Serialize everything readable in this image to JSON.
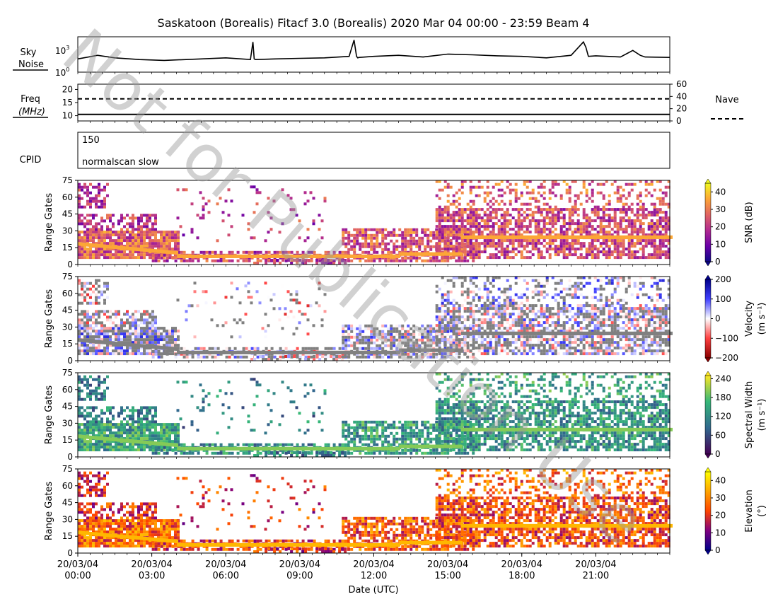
{
  "title": "Saskatoon (Borealis) Fitacf 3.0 (Borealis) 2020 Mar 04 00:00 - 23:59  Beam 4",
  "watermark": "Not for Publication Use",
  "colors": {
    "snr": [
      "#0d0887",
      "#6a00a8",
      "#b12a90",
      "#e16462",
      "#fca636",
      "#f0f921"
    ],
    "velocity": [
      "#8b0000",
      "#ff4040",
      "#ffffff",
      "#4040ff",
      "#00008b"
    ],
    "width": [
      "#440154",
      "#31688e",
      "#35b779",
      "#fde725"
    ],
    "elevation": [
      "#00008b",
      "#800080",
      "#ff4500",
      "#ffa500",
      "#ffff00"
    ],
    "missing": "#808080"
  },
  "chart_data": [
    {
      "id": "sky_noise",
      "type": "line",
      "label": "Sky\nNoise",
      "ylabels": [
        "10",
        "10"
      ],
      "ytick_exponents": [
        "3",
        "0"
      ],
      "yscale": "log",
      "ylim": [
        1,
        10000
      ],
      "x_hours": [
        0,
        0.8,
        1.5,
        2.5,
        3.5,
        5,
        6,
        7,
        7.1,
        7.15,
        7.2,
        8,
        9,
        10,
        11,
        11.2,
        11.3,
        11.35,
        11.4,
        12,
        13,
        14,
        15,
        16,
        17,
        18,
        19,
        20,
        20.5,
        20.6,
        20.7,
        21,
        22,
        22.5,
        22.8,
        23,
        24
      ],
      "y_values": [
        30,
        80,
        40,
        25,
        20,
        30,
        40,
        25,
        3000,
        30,
        25,
        30,
        35,
        40,
        60,
        5000,
        60,
        40,
        45,
        60,
        80,
        50,
        110,
        90,
        70,
        60,
        40,
        80,
        3000,
        700,
        60,
        70,
        50,
        300,
        80,
        50,
        45
      ]
    },
    {
      "id": "freq",
      "type": "line",
      "label": "Freq",
      "unit": "(MHz)",
      "left_ticks": [
        "10",
        "15",
        "20"
      ],
      "left_ylim": [
        8,
        22
      ],
      "freq_value_mhz": 10.5,
      "right_label": "Nave",
      "right_ticks": [
        "0",
        "20",
        "40",
        "60"
      ],
      "right_ylim": [
        0,
        60
      ],
      "nave_value": 36
    },
    {
      "id": "cpid",
      "type": "table",
      "label": "CPID",
      "cpid": "150",
      "mode": "normalscan slow"
    },
    {
      "id": "snr",
      "type": "heatmap",
      "ylabel": "Range Gates",
      "yticks": [
        "0",
        "15",
        "30",
        "45",
        "60",
        "75"
      ],
      "ylim": [
        0,
        75
      ],
      "colorbar_label": "SNR (dB)",
      "colorbar_ticks": [
        "0",
        "10",
        "20",
        "30",
        "40"
      ],
      "clim": [
        0,
        45
      ]
    },
    {
      "id": "velocity",
      "type": "heatmap",
      "ylabel": "Range Gates",
      "yticks": [
        "0",
        "15",
        "30",
        "45",
        "60",
        "75"
      ],
      "ylim": [
        0,
        75
      ],
      "colorbar_label": "Velocity",
      "colorbar_unit": "(m s⁻¹)",
      "colorbar_ticks": [
        "−200",
        "−100",
        "0",
        "100",
        "200"
      ],
      "clim": [
        -200,
        200
      ]
    },
    {
      "id": "spectral_width",
      "type": "heatmap",
      "ylabel": "Range Gates",
      "yticks": [
        "0",
        "15",
        "30",
        "45",
        "60",
        "75"
      ],
      "ylim": [
        0,
        75
      ],
      "colorbar_label": "Spectral Width",
      "colorbar_unit": "(m s⁻¹)",
      "colorbar_ticks": [
        "0",
        "60",
        "120",
        "180",
        "240"
      ],
      "clim": [
        0,
        250
      ]
    },
    {
      "id": "elevation",
      "type": "heatmap",
      "ylabel": "Range Gates",
      "yticks": [
        "0",
        "15",
        "30",
        "45",
        "60",
        "75"
      ],
      "ylim": [
        0,
        75
      ],
      "colorbar_label": "Elevation",
      "colorbar_unit": "(°)",
      "colorbar_ticks": [
        "0",
        "10",
        "20",
        "30",
        "40"
      ],
      "clim": [
        0,
        45
      ]
    }
  ],
  "xaxis": {
    "label": "Date (UTC)",
    "xlim_hours": [
      0,
      24
    ],
    "tick_hours": [
      0,
      3,
      6,
      9,
      12,
      15,
      18,
      21
    ],
    "tick_dates": [
      "20/03/04",
      "20/03/04",
      "20/03/04",
      "20/03/04",
      "20/03/04",
      "20/03/04",
      "20/03/04",
      "20/03/04"
    ],
    "tick_times": [
      "00:00",
      "03:00",
      "06:00",
      "09:00",
      "12:00",
      "15:00",
      "18:00",
      "21:00"
    ]
  }
}
